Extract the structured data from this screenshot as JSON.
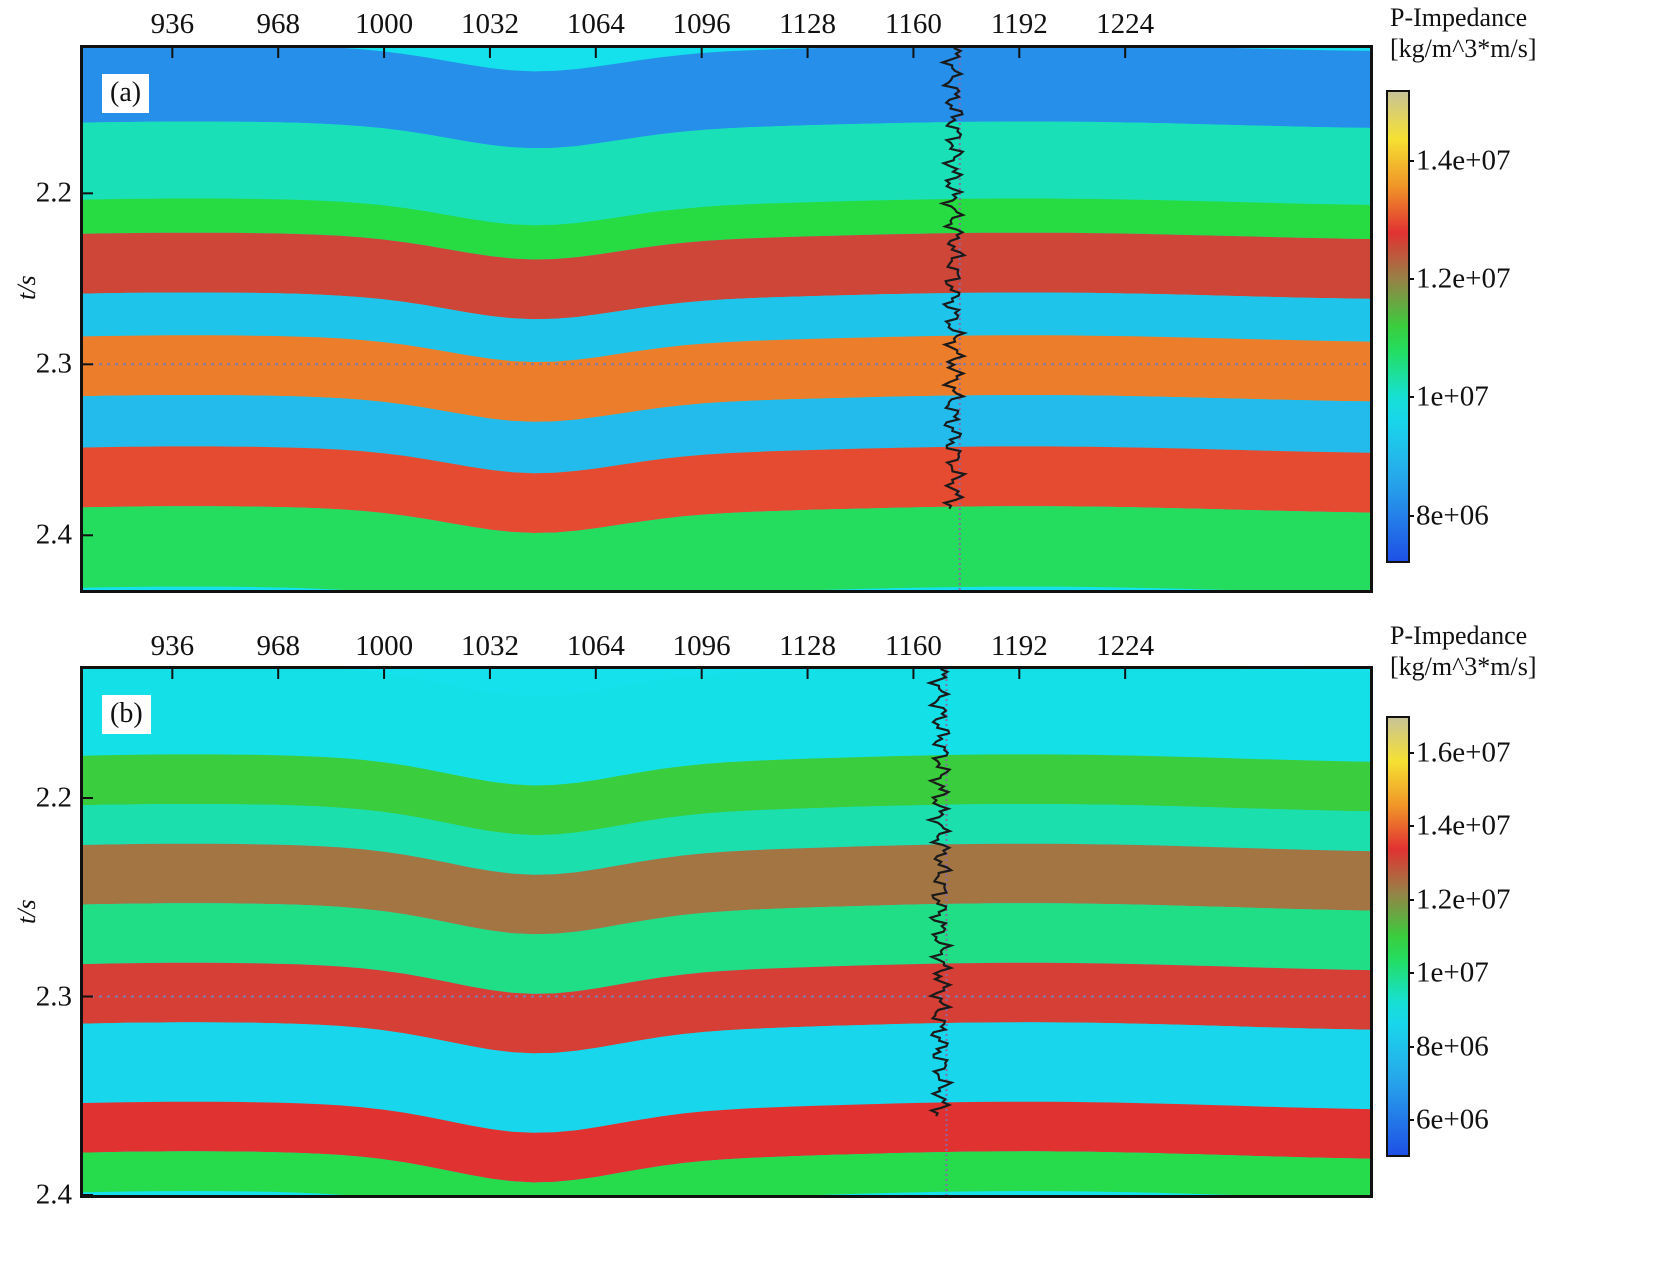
{
  "chart_data": [
    {
      "type": "heatmap",
      "panel_label": "(a)",
      "xlabel": "",
      "ylabel": "t/s",
      "x_ticks": [
        "936",
        "968",
        "1000",
        "1032",
        "1064",
        "1096",
        "1128",
        "1160",
        "1192",
        "1224"
      ],
      "x_tick_values": [
        936,
        968,
        1000,
        1032,
        1064,
        1096,
        1128,
        1160,
        1192,
        1224
      ],
      "xlim": [
        909,
        1298
      ],
      "y_ticks": [
        "2.2",
        "2.3",
        "2.4"
      ],
      "y_tick_values": [
        2.2,
        2.3,
        2.4
      ],
      "ylim": [
        2.115,
        2.432
      ],
      "colorbar": {
        "title_line1": "P-Impedance",
        "title_line2": "[kg/m^3*m/s]",
        "ticks": [
          "1.4e+07",
          "1.2e+07",
          "1e+07",
          "8e+06"
        ],
        "tick_values": [
          14000000,
          12000000,
          10000000,
          8000000
        ],
        "range": [
          7200000,
          15200000
        ]
      },
      "well_trace_x": 1174,
      "horizon_t": 2.3,
      "layers": [
        {
          "t_top": 2.115,
          "t_bottom": 2.16,
          "impedance": 8200000
        },
        {
          "t_top": 2.16,
          "t_bottom": 2.205,
          "impedance": 10200000
        },
        {
          "t_top": 2.205,
          "t_bottom": 2.225,
          "impedance": 11000000
        },
        {
          "t_top": 2.225,
          "t_bottom": 2.26,
          "impedance": 12600000
        },
        {
          "t_top": 2.26,
          "t_bottom": 2.285,
          "impedance": 9200000
        },
        {
          "t_top": 2.285,
          "t_bottom": 2.32,
          "impedance": 13400000
        },
        {
          "t_top": 2.32,
          "t_bottom": 2.35,
          "impedance": 9000000
        },
        {
          "t_top": 2.35,
          "t_bottom": 2.385,
          "impedance": 13000000
        },
        {
          "t_top": 2.385,
          "t_bottom": 2.432,
          "impedance": 10800000
        }
      ]
    },
    {
      "type": "heatmap",
      "panel_label": "(b)",
      "xlabel": "",
      "ylabel": "t/s",
      "x_ticks": [
        "936",
        "968",
        "1000",
        "1032",
        "1064",
        "1096",
        "1128",
        "1160",
        "1192",
        "1224"
      ],
      "x_tick_values": [
        936,
        968,
        1000,
        1032,
        1064,
        1096,
        1128,
        1160,
        1192,
        1224
      ],
      "xlim": [
        909,
        1298
      ],
      "y_ticks": [
        "2.2",
        "2.3",
        "2.4"
      ],
      "y_tick_values": [
        2.2,
        2.3,
        2.4
      ],
      "ylim": [
        2.135,
        2.4
      ],
      "colorbar": {
        "title_line1": "P-Impedance",
        "title_line2": "[kg/m^3*m/s]",
        "ticks": [
          "1.6e+07",
          "1.4e+07",
          "1.2e+07",
          "1e+07",
          "8e+06",
          "6e+06"
        ],
        "tick_values": [
          16000000,
          14000000,
          12000000,
          10000000,
          8000000,
          6000000
        ],
        "range": [
          5000000,
          17000000
        ]
      },
      "well_trace_x": 1170,
      "horizon_t": 2.3,
      "layers": [
        {
          "t_top": 2.135,
          "t_bottom": 2.18,
          "impedance": 9000000
        },
        {
          "t_top": 2.18,
          "t_bottom": 2.205,
          "impedance": 11000000
        },
        {
          "t_top": 2.205,
          "t_bottom": 2.225,
          "impedance": 9600000
        },
        {
          "t_top": 2.225,
          "t_bottom": 2.255,
          "impedance": 12400000
        },
        {
          "t_top": 2.255,
          "t_bottom": 2.285,
          "impedance": 10000000
        },
        {
          "t_top": 2.285,
          "t_bottom": 2.315,
          "impedance": 13200000
        },
        {
          "t_top": 2.315,
          "t_bottom": 2.355,
          "impedance": 8600000
        },
        {
          "t_top": 2.355,
          "t_bottom": 2.38,
          "impedance": 13400000
        },
        {
          "t_top": 2.38,
          "t_bottom": 2.4,
          "impedance": 10600000
        }
      ]
    }
  ]
}
